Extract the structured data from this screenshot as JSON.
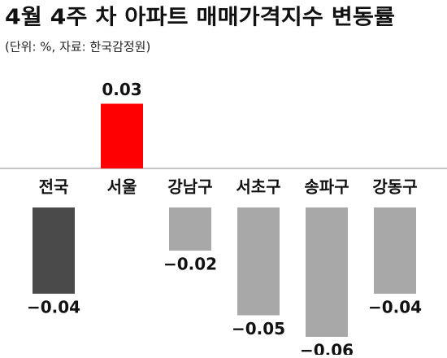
{
  "chart_data": {
    "type": "bar",
    "title": "4월 4주 차 아파트 매매가격지수 변동률",
    "subtitle": "(단위: %, 자료: 한국감정원)",
    "categories": [
      "전국",
      "서울",
      "강남구",
      "서초구",
      "송파구",
      "강동구"
    ],
    "values": [
      -0.04,
      0.03,
      -0.02,
      -0.05,
      -0.06,
      -0.04
    ],
    "value_labels": [
      "−0.04",
      "0.03",
      "−0.02",
      "−0.05",
      "−0.06",
      "−0.04"
    ],
    "colors": [
      "#4a4a4a",
      "#ff0000",
      "#a8a8a8",
      "#a8a8a8",
      "#a8a8a8",
      "#a8a8a8"
    ]
  }
}
